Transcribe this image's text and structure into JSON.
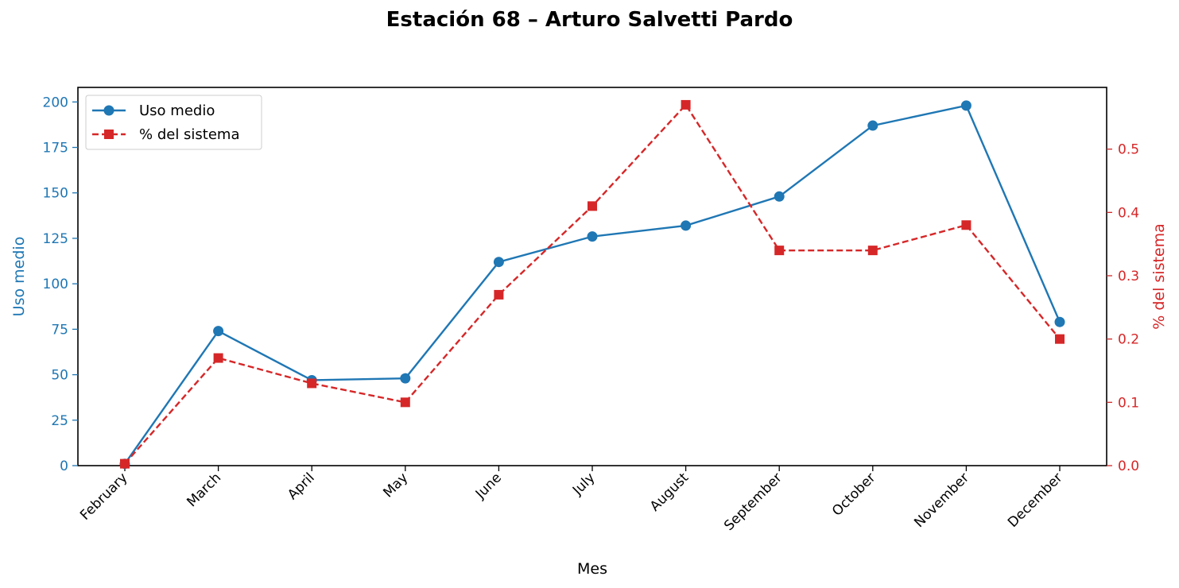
{
  "chart_data": {
    "type": "line",
    "title": "Estación 68 – Arturo Salvetti Pardo",
    "xlabel": "Mes",
    "ylabel_left": "Uso medio",
    "ylabel_right": "% del sistema",
    "categories": [
      "February",
      "March",
      "April",
      "May",
      "June",
      "July",
      "August",
      "September",
      "October",
      "November",
      "December"
    ],
    "ylim_left": [
      0,
      208
    ],
    "ylim_right": [
      0,
      0.5975
    ],
    "yticks_left": [
      0,
      25,
      50,
      75,
      100,
      125,
      150,
      175,
      200
    ],
    "yticks_right": [
      0.0,
      0.1,
      0.2,
      0.3,
      0.4,
      0.5
    ],
    "grid": false,
    "legend_position": "upper left",
    "series": [
      {
        "name": "Uso medio",
        "axis": "left",
        "color": "#1f77b4",
        "line_style": "solid",
        "marker": "circle",
        "values": [
          1,
          74,
          47,
          48,
          112,
          126,
          132,
          148,
          187,
          198,
          79
        ]
      },
      {
        "name": "% del sistema",
        "axis": "right",
        "color": "#d62728",
        "line_style": "dashed",
        "marker": "square",
        "values": [
          0.003,
          0.17,
          0.13,
          0.1,
          0.27,
          0.41,
          0.57,
          0.34,
          0.34,
          0.38,
          0.2
        ]
      }
    ]
  }
}
